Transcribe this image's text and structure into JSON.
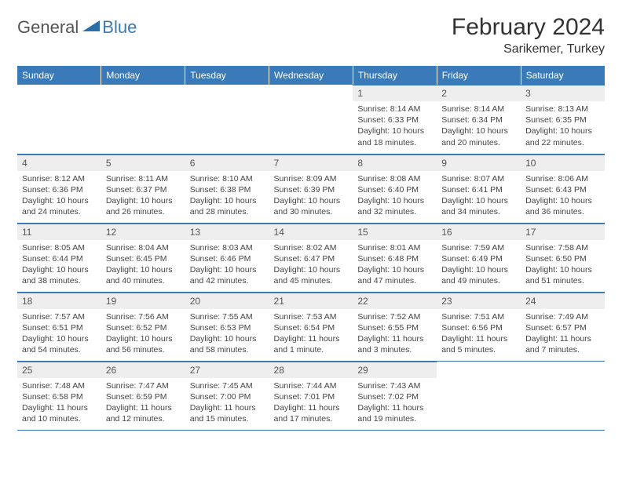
{
  "brand": {
    "part1": "General",
    "part2": "Blue"
  },
  "title": "February 2024",
  "location": "Sarikemer, Turkey",
  "colors": {
    "header_bg": "#3a7ab8",
    "header_text": "#ffffff",
    "daynum_bg": "#eeeeee",
    "border": "#3a7ab8",
    "body_text": "#444444"
  },
  "weekdays": [
    "Sunday",
    "Monday",
    "Tuesday",
    "Wednesday",
    "Thursday",
    "Friday",
    "Saturday"
  ],
  "weeks": [
    [
      null,
      null,
      null,
      null,
      {
        "n": "1",
        "sr": "8:14 AM",
        "ss": "6:33 PM",
        "dh": "10",
        "dm": "18"
      },
      {
        "n": "2",
        "sr": "8:14 AM",
        "ss": "6:34 PM",
        "dh": "10",
        "dm": "20"
      },
      {
        "n": "3",
        "sr": "8:13 AM",
        "ss": "6:35 PM",
        "dh": "10",
        "dm": "22"
      }
    ],
    [
      {
        "n": "4",
        "sr": "8:12 AM",
        "ss": "6:36 PM",
        "dh": "10",
        "dm": "24"
      },
      {
        "n": "5",
        "sr": "8:11 AM",
        "ss": "6:37 PM",
        "dh": "10",
        "dm": "26"
      },
      {
        "n": "6",
        "sr": "8:10 AM",
        "ss": "6:38 PM",
        "dh": "10",
        "dm": "28"
      },
      {
        "n": "7",
        "sr": "8:09 AM",
        "ss": "6:39 PM",
        "dh": "10",
        "dm": "30"
      },
      {
        "n": "8",
        "sr": "8:08 AM",
        "ss": "6:40 PM",
        "dh": "10",
        "dm": "32"
      },
      {
        "n": "9",
        "sr": "8:07 AM",
        "ss": "6:41 PM",
        "dh": "10",
        "dm": "34"
      },
      {
        "n": "10",
        "sr": "8:06 AM",
        "ss": "6:43 PM",
        "dh": "10",
        "dm": "36"
      }
    ],
    [
      {
        "n": "11",
        "sr": "8:05 AM",
        "ss": "6:44 PM",
        "dh": "10",
        "dm": "38"
      },
      {
        "n": "12",
        "sr": "8:04 AM",
        "ss": "6:45 PM",
        "dh": "10",
        "dm": "40"
      },
      {
        "n": "13",
        "sr": "8:03 AM",
        "ss": "6:46 PM",
        "dh": "10",
        "dm": "42"
      },
      {
        "n": "14",
        "sr": "8:02 AM",
        "ss": "6:47 PM",
        "dh": "10",
        "dm": "45"
      },
      {
        "n": "15",
        "sr": "8:01 AM",
        "ss": "6:48 PM",
        "dh": "10",
        "dm": "47"
      },
      {
        "n": "16",
        "sr": "7:59 AM",
        "ss": "6:49 PM",
        "dh": "10",
        "dm": "49"
      },
      {
        "n": "17",
        "sr": "7:58 AM",
        "ss": "6:50 PM",
        "dh": "10",
        "dm": "51"
      }
    ],
    [
      {
        "n": "18",
        "sr": "7:57 AM",
        "ss": "6:51 PM",
        "dh": "10",
        "dm": "54"
      },
      {
        "n": "19",
        "sr": "7:56 AM",
        "ss": "6:52 PM",
        "dh": "10",
        "dm": "56"
      },
      {
        "n": "20",
        "sr": "7:55 AM",
        "ss": "6:53 PM",
        "dh": "10",
        "dm": "58"
      },
      {
        "n": "21",
        "sr": "7:53 AM",
        "ss": "6:54 PM",
        "dh": "11",
        "dm": "1",
        "singular": true
      },
      {
        "n": "22",
        "sr": "7:52 AM",
        "ss": "6:55 PM",
        "dh": "11",
        "dm": "3"
      },
      {
        "n": "23",
        "sr": "7:51 AM",
        "ss": "6:56 PM",
        "dh": "11",
        "dm": "5"
      },
      {
        "n": "24",
        "sr": "7:49 AM",
        "ss": "6:57 PM",
        "dh": "11",
        "dm": "7"
      }
    ],
    [
      {
        "n": "25",
        "sr": "7:48 AM",
        "ss": "6:58 PM",
        "dh": "11",
        "dm": "10"
      },
      {
        "n": "26",
        "sr": "7:47 AM",
        "ss": "6:59 PM",
        "dh": "11",
        "dm": "12"
      },
      {
        "n": "27",
        "sr": "7:45 AM",
        "ss": "7:00 PM",
        "dh": "11",
        "dm": "15"
      },
      {
        "n": "28",
        "sr": "7:44 AM",
        "ss": "7:01 PM",
        "dh": "11",
        "dm": "17"
      },
      {
        "n": "29",
        "sr": "7:43 AM",
        "ss": "7:02 PM",
        "dh": "11",
        "dm": "19"
      },
      null,
      null
    ]
  ],
  "labels": {
    "sunrise": "Sunrise:",
    "sunset": "Sunset:",
    "daylight": "Daylight:",
    "hours": "hours",
    "and": "and",
    "minute": "minute.",
    "minutes": "minutes."
  }
}
